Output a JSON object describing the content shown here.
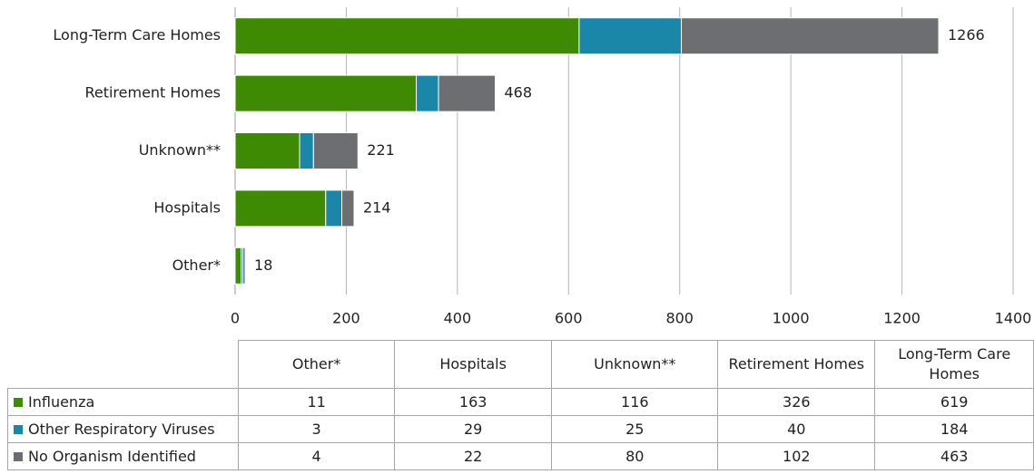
{
  "chart_data": {
    "type": "stacked-bar-horizontal",
    "categories": [
      "Other*",
      "Hospitals",
      "Unknown**",
      "Retirement Homes",
      "Long-Term Care Homes"
    ],
    "series": [
      {
        "name": "Influenza",
        "color": "#3f8a03",
        "values": [
          11,
          163,
          116,
          326,
          619
        ]
      },
      {
        "name": "Other Respiratory Viruses",
        "color": "#1b87a8",
        "values": [
          3,
          29,
          25,
          40,
          184
        ]
      },
      {
        "name": "No Organism Identified",
        "color": "#6d6e71",
        "values": [
          4,
          22,
          80,
          102,
          463
        ]
      }
    ],
    "totals": [
      18,
      214,
      221,
      468,
      1266
    ],
    "xlim": [
      0,
      1400
    ],
    "xticks": [
      0,
      200,
      400,
      600,
      800,
      1000,
      1200,
      1400
    ],
    "grid": true
  }
}
